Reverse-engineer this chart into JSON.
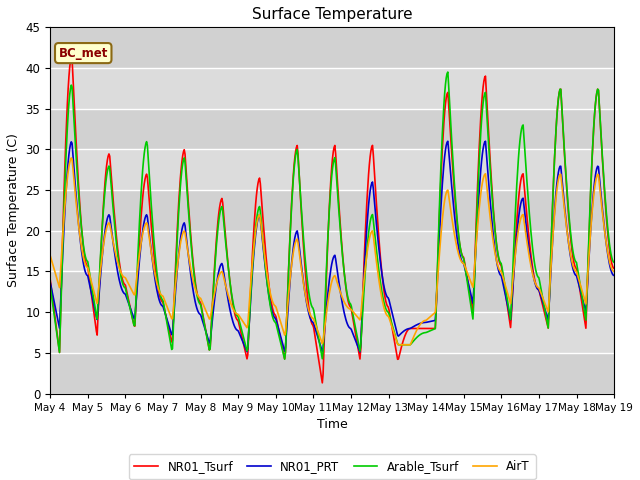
{
  "title": "Surface Temperature",
  "xlabel": "Time",
  "ylabel": "Surface Temperature (C)",
  "ylim": [
    0,
    45
  ],
  "annotation_text": "BC_met",
  "legend_labels": [
    "NR01_Tsurf",
    "NR01_PRT",
    "Arable_Tsurf",
    "AirT"
  ],
  "line_colors": [
    "#ff0000",
    "#0000cd",
    "#00cc00",
    "#ffa500"
  ],
  "line_width": 1.2,
  "background_color": "#ffffff",
  "plot_bg_color": "#dcdcdc",
  "x_tick_labels": [
    "May 4",
    "May 5",
    "May 6",
    "May 7",
    "May 8",
    "May 9",
    "May 10",
    "May 11",
    "May 12",
    "May 13",
    "May 14",
    "May 15",
    "May 16",
    "May 17",
    "May 18",
    "May 19"
  ],
  "days": 15,
  "figsize": [
    6.4,
    4.8
  ],
  "dpi": 100
}
